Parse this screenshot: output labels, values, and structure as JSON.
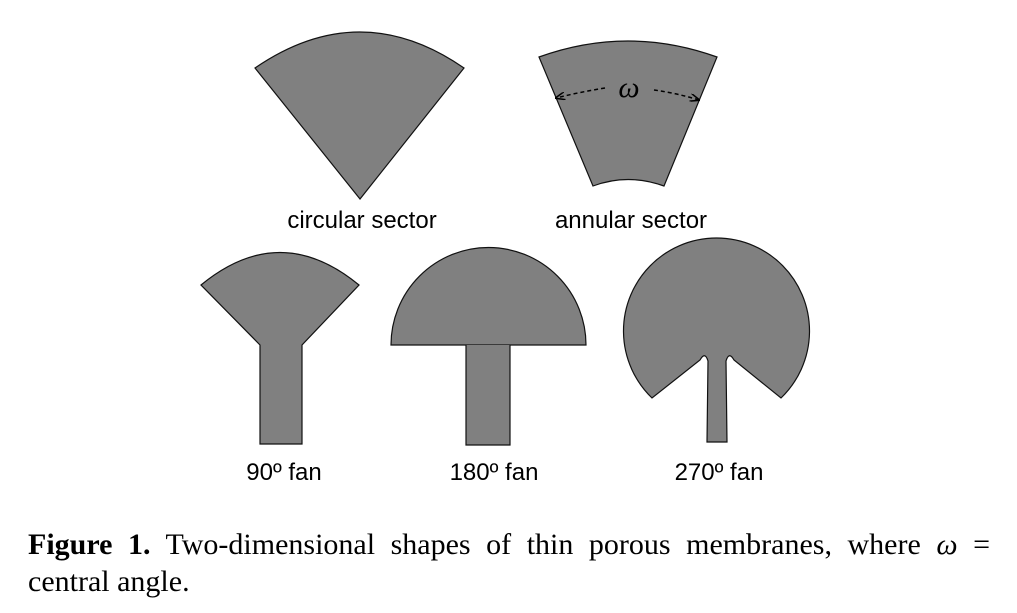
{
  "figure": {
    "shapes": [
      {
        "id": "circular-sector",
        "label": "circular sector"
      },
      {
        "id": "annular-sector",
        "label": "annular sector",
        "angle_symbol": "ω"
      },
      {
        "id": "fan-90",
        "label": "90º fan"
      },
      {
        "id": "fan-180",
        "label": "180º fan"
      },
      {
        "id": "fan-270",
        "label": "270º fan"
      }
    ],
    "fill_color": "#808080",
    "outline_color": "#111111"
  },
  "caption": {
    "number": "Figure 1.",
    "text_part1": "Two-dimensional shapes of thin porous membranes, where",
    "symbol": "ω",
    "text_part2": "= central angle."
  }
}
